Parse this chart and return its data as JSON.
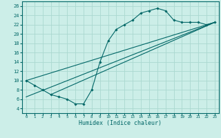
{
  "title": "",
  "xlabel": "Humidex (Indice chaleur)",
  "ylabel": "",
  "bg_color": "#cceee8",
  "grid_color": "#aad8d0",
  "line_color": "#006666",
  "xlim": [
    -0.5,
    23.5
  ],
  "ylim": [
    3,
    27
  ],
  "xticks": [
    0,
    1,
    2,
    3,
    4,
    5,
    6,
    7,
    8,
    9,
    10,
    11,
    12,
    13,
    14,
    15,
    16,
    17,
    18,
    19,
    20,
    21,
    22,
    23
  ],
  "yticks": [
    4,
    6,
    8,
    10,
    12,
    14,
    16,
    18,
    20,
    22,
    24,
    26
  ],
  "hours": [
    0,
    1,
    2,
    3,
    4,
    5,
    6,
    7,
    8,
    9,
    10,
    11,
    12,
    13,
    14,
    15,
    16,
    17,
    18,
    19,
    20,
    21,
    22,
    23
  ],
  "humidex": [
    10,
    9,
    8,
    7,
    6.5,
    6,
    5,
    5,
    8,
    14,
    18.5,
    21,
    22,
    23,
    24.5,
    25,
    25.5,
    25,
    23,
    22.5,
    22.5,
    22.5,
    22,
    22.5
  ],
  "trend1_x": [
    0,
    23
  ],
  "trend1_y": [
    10,
    22.5
  ],
  "trend2_x": [
    3,
    23
  ],
  "trend2_y": [
    7,
    22.5
  ],
  "trend3_x": [
    0,
    23
  ],
  "trend3_y": [
    6.5,
    22.5
  ]
}
